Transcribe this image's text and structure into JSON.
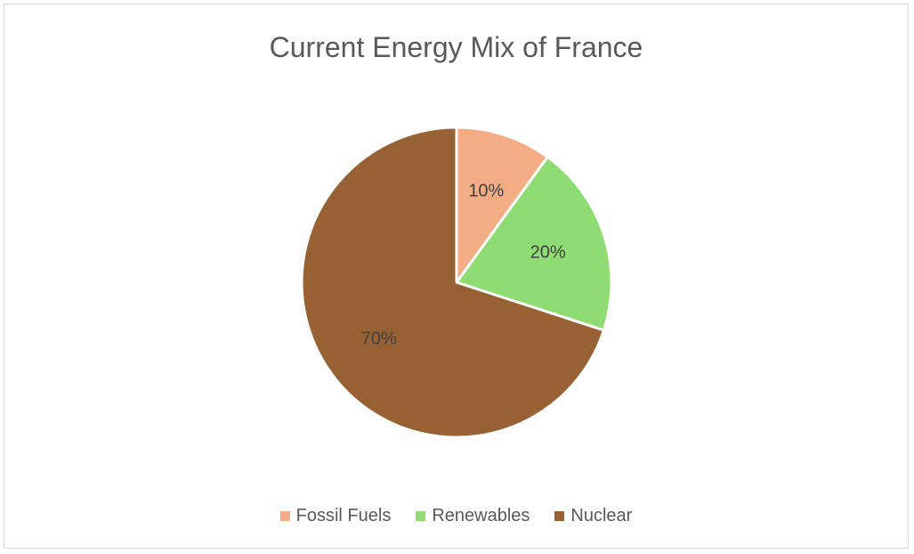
{
  "chart_data": {
    "type": "pie",
    "title": "Current Energy Mix of France",
    "slices": [
      {
        "label": "Fossil Fuels",
        "value": 10,
        "data_label": "10%",
        "color": "#F4AC84"
      },
      {
        "label": "Renewables",
        "value": 20,
        "data_label": "20%",
        "color": "#8FDC75"
      },
      {
        "label": "Nuclear",
        "value": 70,
        "data_label": "70%",
        "color": "#976133"
      }
    ],
    "legend_position": "bottom",
    "start_angle": "12 o'clock",
    "direction": "clockwise"
  }
}
